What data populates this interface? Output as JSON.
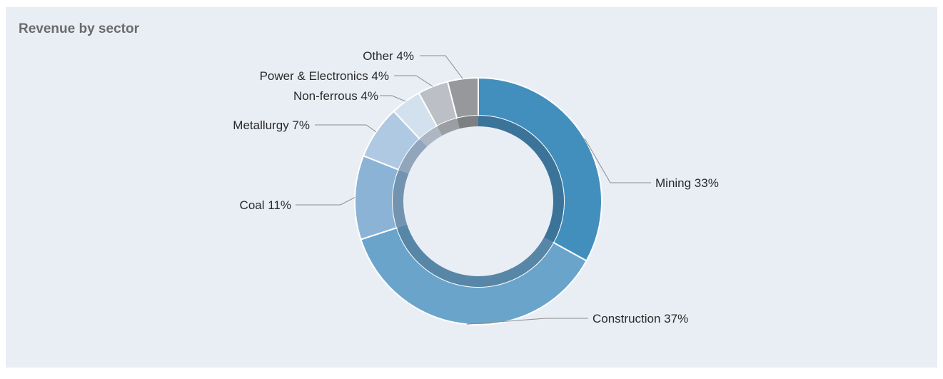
{
  "chart_data": {
    "type": "pie",
    "variant": "donut",
    "title": "Revenue by sector",
    "slices": [
      {
        "label": "Mining 33%",
        "value": 33,
        "color": "#428fbd",
        "inner_color": "#3c7399"
      },
      {
        "label": "Construction 37%",
        "value": 37,
        "color": "#6aa4cb",
        "inner_color": "#5886a7"
      },
      {
        "label": "Coal 11%",
        "value": 11,
        "color": "#8bb3d6",
        "inner_color": "#7394b0"
      },
      {
        "label": "Metallurgy 7%",
        "value": 7,
        "color": "#afc9e3",
        "inner_color": "#91a6bb"
      },
      {
        "label": "Non-ferrous 4%",
        "value": 4,
        "color": "#d3e0ed",
        "inner_color": "#acb7c3"
      },
      {
        "label": "Power & Electronics 4%",
        "value": 4,
        "color": "#bcbfc6",
        "inner_color": "#9b9ea3"
      },
      {
        "label": "Other 4%",
        "value": 4,
        "color": "#96989c",
        "inner_color": "#7d7f83"
      }
    ],
    "legend": "none"
  }
}
